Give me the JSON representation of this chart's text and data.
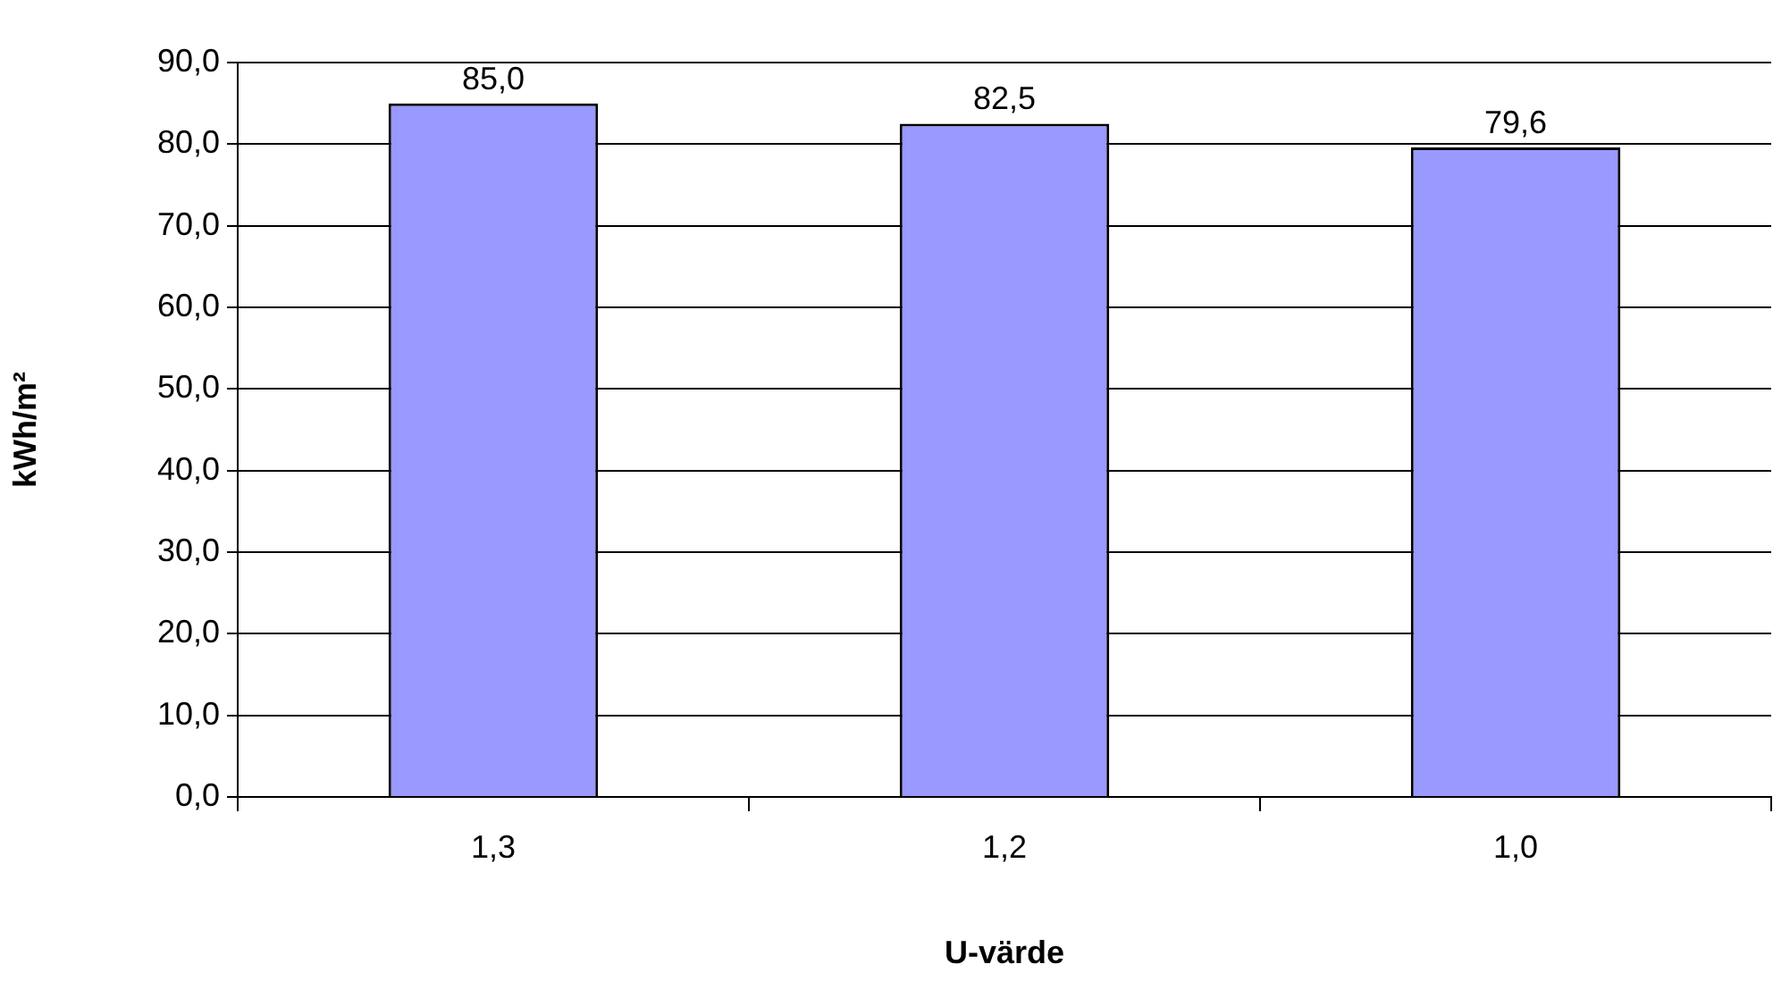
{
  "chart_data": {
    "type": "bar",
    "xlabel": "U-värde",
    "ylabel": "kWh/m²",
    "categories": [
      "1,3",
      "1,2",
      "1,0"
    ],
    "values": [
      85.0,
      82.5,
      79.6
    ],
    "value_labels": [
      "85,0",
      "82,5",
      "79,6"
    ],
    "color": "#9999ff",
    "ylim": [
      0,
      90
    ],
    "yticks": [
      {
        "value": 0,
        "label": "0,0"
      },
      {
        "value": 10,
        "label": "10,0"
      },
      {
        "value": 20,
        "label": "20,0"
      },
      {
        "value": 30,
        "label": "30,0"
      },
      {
        "value": 40,
        "label": "40,0"
      },
      {
        "value": 50,
        "label": "50,0"
      },
      {
        "value": 60,
        "label": "60,0"
      },
      {
        "value": 70,
        "label": "70,0"
      },
      {
        "value": 80,
        "label": "80,0"
      },
      {
        "value": 90,
        "label": "90,0"
      }
    ],
    "grid": "y",
    "legend": false
  }
}
